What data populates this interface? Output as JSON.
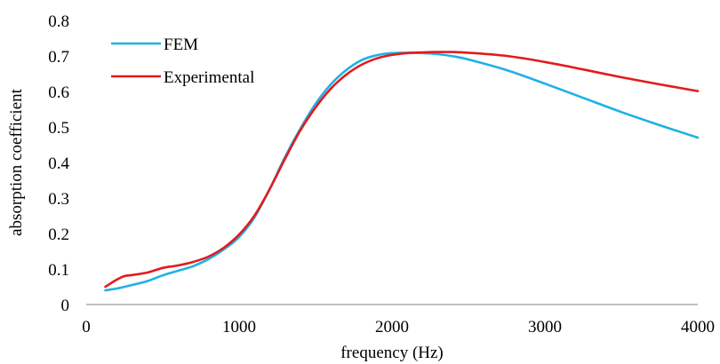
{
  "chart_data": {
    "type": "line",
    "title": "",
    "xlabel": "frequency (Hz)",
    "ylabel": "absorption coefficient",
    "xlim": [
      0,
      4000
    ],
    "ylim": [
      0,
      0.8
    ],
    "xticks": [
      0,
      1000,
      2000,
      3000,
      4000
    ],
    "yticks": [
      0,
      0.1,
      0.2,
      0.3,
      0.4,
      0.5,
      0.6,
      0.7,
      0.8
    ],
    "xtick_labels": [
      "0",
      "1000",
      "2000",
      "3000",
      "4000"
    ],
    "ytick_labels": [
      "0",
      "0.1",
      "0.2",
      "0.3",
      "0.4",
      "0.5",
      "0.6",
      "0.7",
      "0.8"
    ],
    "grid": false,
    "legend_position": "top-left",
    "series": [
      {
        "name": "FEM",
        "color": "#1EB1E6",
        "x": [
          125,
          200,
          300,
          400,
          500,
          600,
          700,
          800,
          900,
          1000,
          1100,
          1200,
          1300,
          1400,
          1500,
          1600,
          1700,
          1800,
          1900,
          2000,
          2100,
          2200,
          2300,
          2400,
          2500,
          2750,
          3000,
          3250,
          3500,
          3750,
          4000
        ],
        "values": [
          0.04,
          0.045,
          0.055,
          0.066,
          0.082,
          0.095,
          0.108,
          0.128,
          0.155,
          0.19,
          0.245,
          0.325,
          0.415,
          0.495,
          0.565,
          0.62,
          0.66,
          0.688,
          0.702,
          0.708,
          0.709,
          0.708,
          0.705,
          0.699,
          0.69,
          0.66,
          0.622,
          0.582,
          0.542,
          0.505,
          0.47
        ]
      },
      {
        "name": "Experimental",
        "color": "#E31A1C",
        "x": [
          125,
          200,
          250,
          300,
          400,
          500,
          600,
          700,
          800,
          900,
          1000,
          1100,
          1200,
          1300,
          1400,
          1500,
          1600,
          1700,
          1800,
          1900,
          2000,
          2100,
          2200,
          2300,
          2400,
          2500,
          2750,
          3000,
          3250,
          3500,
          3750,
          4000
        ],
        "values": [
          0.05,
          0.07,
          0.08,
          0.083,
          0.09,
          0.103,
          0.11,
          0.12,
          0.135,
          0.16,
          0.197,
          0.25,
          0.325,
          0.41,
          0.49,
          0.555,
          0.608,
          0.647,
          0.675,
          0.693,
          0.703,
          0.708,
          0.71,
          0.711,
          0.711,
          0.709,
          0.7,
          0.683,
          0.662,
          0.64,
          0.62,
          0.601
        ]
      }
    ]
  }
}
